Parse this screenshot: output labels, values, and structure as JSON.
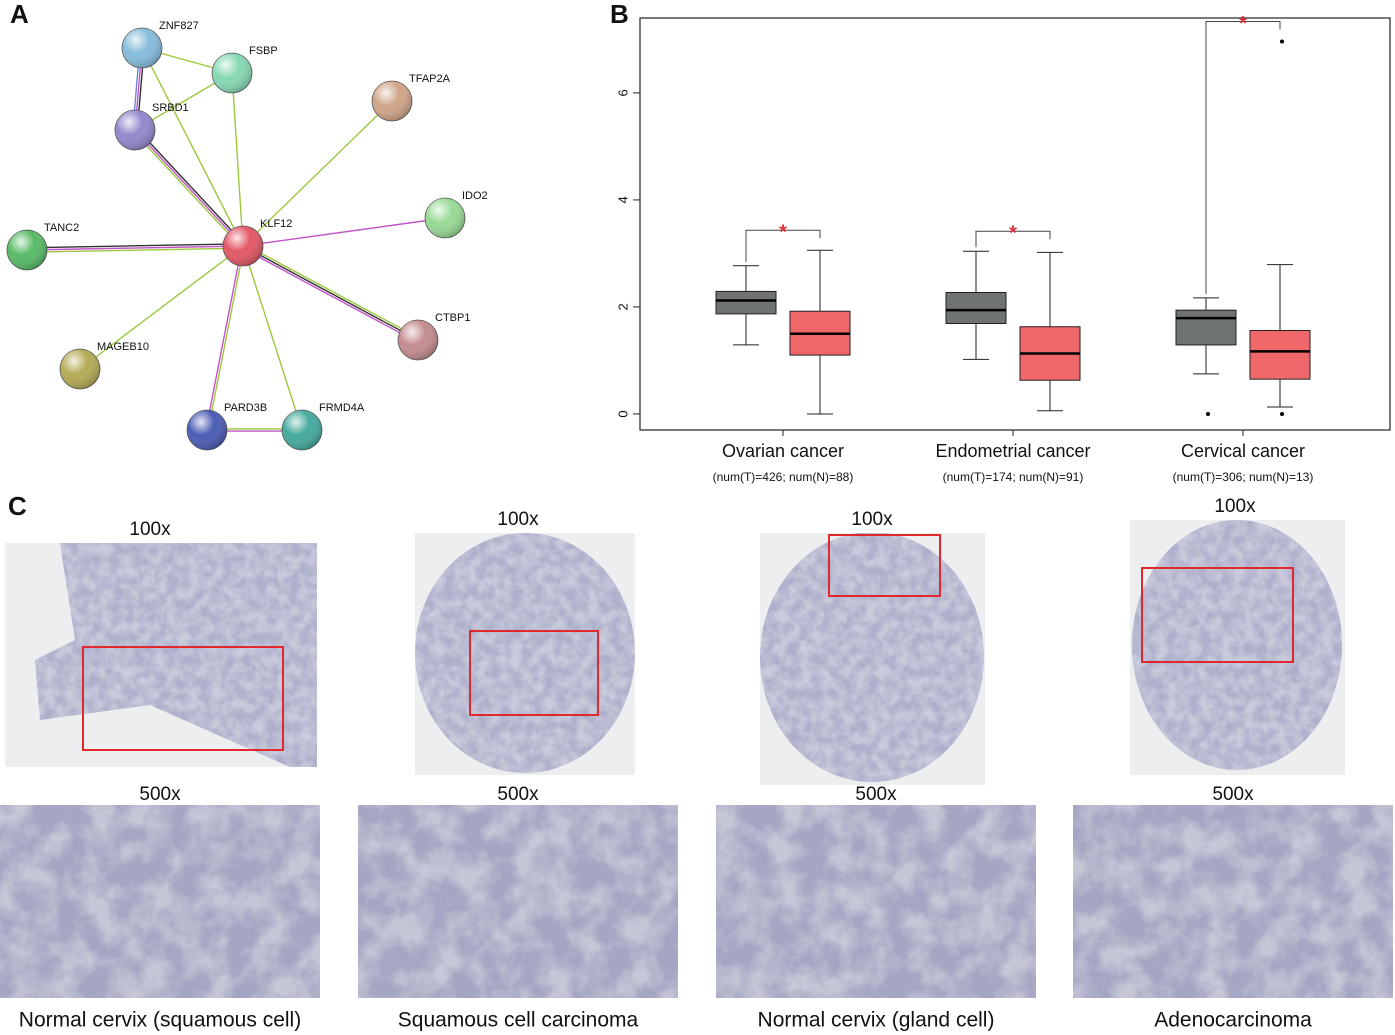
{
  "panel_labels": [
    "A",
    "B",
    "C"
  ],
  "network": {
    "nodes": [
      {
        "label": "ZNF827",
        "color": "#86bcdc"
      },
      {
        "label": "FSBP",
        "color": "#86d8b4"
      },
      {
        "label": "SRBD1",
        "color": "#9288cc"
      },
      {
        "label": "TFAP2A",
        "color": "#cfa488"
      },
      {
        "label": "IDO2",
        "color": "#98da96"
      },
      {
        "label": "TANC2",
        "color": "#58ba66"
      },
      {
        "label": "KLF12",
        "color": "#e25866"
      },
      {
        "label": "CTBP1",
        "color": "#c48c8e"
      },
      {
        "label": "MAGEB10",
        "color": "#b4aa56"
      },
      {
        "label": "PARD3B",
        "color": "#4c5cb4"
      },
      {
        "label": "FRMD4A",
        "color": "#44aa9c"
      }
    ]
  },
  "chart_data": {
    "type": "box",
    "categories": [
      "Ovarian cancer",
      "Endometrial cancer",
      "Cervical cancer"
    ],
    "category_notes": [
      "(num(T)=426; num(N)=88)",
      "(num(T)=174; num(N)=91)",
      "(num(T)=306; num(N)=13)"
    ],
    "series": [
      {
        "color": "#6f7472",
        "values": [
          {
            "min": 1.29,
            "q1": 1.87,
            "median": 2.12,
            "q3": 2.29,
            "max": 2.77
          },
          {
            "min": 1.02,
            "q1": 1.69,
            "median": 1.94,
            "q3": 2.27,
            "max": 3.04
          },
          {
            "min": 0.75,
            "q1": 1.29,
            "median": 1.79,
            "q3": 1.94,
            "max": 2.17
          }
        ],
        "outliers": [
          [],
          [],
          [
            0
          ]
        ]
      },
      {
        "color": "#f0676a",
        "values": [
          {
            "min": 0,
            "q1": 1.1,
            "median": 1.5,
            "q3": 1.92,
            "max": 3.06
          },
          {
            "min": 0.06,
            "q1": 0.63,
            "median": 1.13,
            "q3": 1.63,
            "max": 3.02
          },
          {
            "min": 0.13,
            "q1": 0.65,
            "median": 1.17,
            "q3": 1.56,
            "max": 2.79
          }
        ],
        "outliers": [
          [],
          [],
          [
            6.96,
            0
          ]
        ]
      }
    ],
    "significance": [
      "*",
      "*",
      "*"
    ],
    "ylim": [
      -0.3,
      7.4
    ],
    "yticks": [
      0,
      2,
      4,
      6
    ]
  },
  "histology": [
    {
      "top_label": "100x",
      "bottom_label": "500x",
      "caption": "Normal cervix (squamous cell)"
    },
    {
      "top_label": "100x",
      "bottom_label": "500x",
      "caption": "Squamous cell carcinoma"
    },
    {
      "top_label": "100x",
      "bottom_label": "500x",
      "caption": "Normal cervix (gland cell)"
    },
    {
      "top_label": "100x",
      "bottom_label": "500x",
      "caption": "Adenocarcinoma"
    }
  ]
}
